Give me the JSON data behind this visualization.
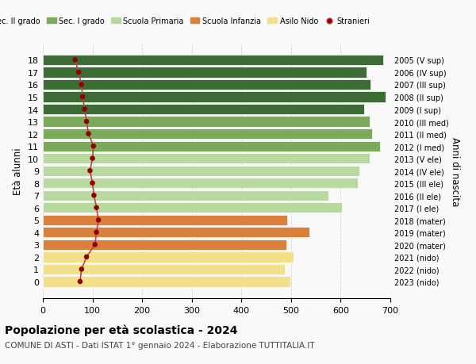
{
  "ages": [
    18,
    17,
    16,
    15,
    14,
    13,
    12,
    11,
    10,
    9,
    8,
    7,
    6,
    5,
    4,
    3,
    2,
    1,
    0
  ],
  "right_labels": [
    "2005 (V sup)",
    "2006 (IV sup)",
    "2007 (III sup)",
    "2008 (II sup)",
    "2009 (I sup)",
    "2010 (III med)",
    "2011 (II med)",
    "2012 (I med)",
    "2013 (V ele)",
    "2014 (IV ele)",
    "2015 (III ele)",
    "2016 (II ele)",
    "2017 (I ele)",
    "2018 (mater)",
    "2019 (mater)",
    "2020 (mater)",
    "2021 (nido)",
    "2022 (nido)",
    "2023 (nido)"
  ],
  "bar_values": [
    685,
    652,
    660,
    690,
    648,
    658,
    663,
    680,
    658,
    638,
    635,
    575,
    603,
    492,
    537,
    490,
    505,
    488,
    498
  ],
  "stranieri_values": [
    65,
    72,
    78,
    80,
    84,
    88,
    92,
    102,
    100,
    95,
    100,
    103,
    108,
    112,
    108,
    105,
    88,
    78,
    75
  ],
  "bar_colors": [
    "#3d6b35",
    "#3d6b35",
    "#3d6b35",
    "#3d6b35",
    "#3d6b35",
    "#7aaa5a",
    "#7aaa5a",
    "#7aaa5a",
    "#b8d9a0",
    "#b8d9a0",
    "#b8d9a0",
    "#b8d9a0",
    "#b8d9a0",
    "#d9813a",
    "#d9813a",
    "#d9813a",
    "#f5e08a",
    "#f5e08a",
    "#f5e08a"
  ],
  "legend_labels": [
    "Sec. II grado",
    "Sec. I grado",
    "Scuola Primaria",
    "Scuola Infanzia",
    "Asilo Nido",
    "Stranieri"
  ],
  "legend_colors": [
    "#3d6b35",
    "#7aaa5a",
    "#b8d9a0",
    "#d9813a",
    "#f5e08a",
    "#8b0000"
  ],
  "xlabel": "",
  "ylabel": "Età alunni",
  "right_ylabel": "Anni di nascita",
  "title": "Popolazione per età scolastica - 2024",
  "subtitle": "COMUNE DI ASTI - Dati ISTAT 1° gennaio 2024 - Elaborazione TUTTITALIA.IT",
  "xlim": [
    0,
    700
  ],
  "xticks": [
    0,
    100,
    200,
    300,
    400,
    500,
    600,
    700
  ],
  "bg_color": "#f9f9f9",
  "grid_color": "#cccccc",
  "stranieri_color": "#8b0000",
  "stranieri_line_color": "#c44040"
}
